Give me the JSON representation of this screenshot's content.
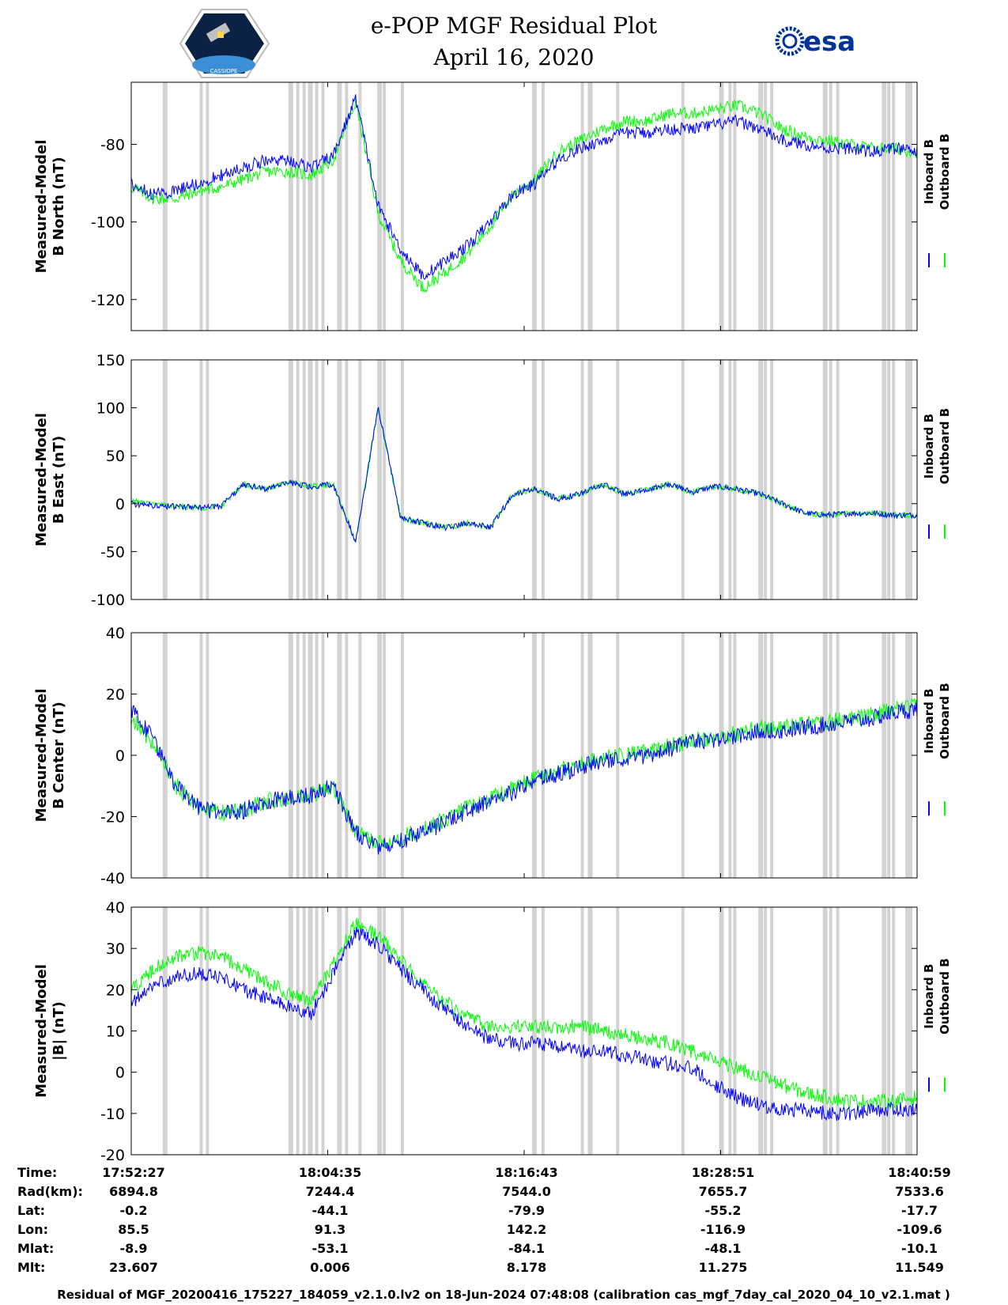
{
  "header": {
    "title": "e-POP MGF Residual Plot",
    "date": "April 16, 2020",
    "logo_left_text": "CASSIOPE",
    "logo_right_text": "esa"
  },
  "legend": {
    "inboard": "Inboard B",
    "outboard": "Outboard B"
  },
  "colors": {
    "inboard": "#0000ff",
    "outboard": "#00ff00",
    "gaps": "#d3d3d3",
    "esa_blue": "#003399"
  },
  "chart_data": [
    {
      "type": "line",
      "ylabel_line1": "Measured-Model",
      "ylabel_line2": "B North (nT)",
      "ylim": [
        -128,
        -64
      ],
      "yticks": [
        -80,
        -100,
        -120
      ],
      "series": [
        {
          "name": "Inboard B",
          "values": [
            -90,
            -93,
            -92,
            -90,
            -88,
            -86,
            -84,
            -84,
            -86,
            -83,
            -68,
            -96,
            -107,
            -114,
            -110,
            -106,
            -100,
            -93,
            -90,
            -84,
            -81,
            -79,
            -77,
            -77,
            -76,
            -76,
            -75,
            -74,
            -76,
            -79,
            -80,
            -81,
            -81,
            -82,
            -81,
            -82
          ]
        },
        {
          "name": "Outboard B",
          "values": [
            -91,
            -94,
            -94,
            -92,
            -91,
            -89,
            -87,
            -87,
            -88,
            -84,
            -69,
            -98,
            -110,
            -117,
            -113,
            -108,
            -101,
            -93,
            -89,
            -82,
            -79,
            -76,
            -74,
            -74,
            -72,
            -72,
            -71,
            -70,
            -72,
            -76,
            -78,
            -79,
            -80,
            -81,
            -81,
            -82
          ]
        }
      ]
    },
    {
      "type": "line",
      "ylabel_line1": "Measured-Model",
      "ylabel_line2": "B East (nT)",
      "ylim": [
        -100,
        150
      ],
      "yticks": [
        150,
        100,
        50,
        0,
        -50,
        -100
      ],
      "series": [
        {
          "name": "Inboard B",
          "values": [
            0,
            -2,
            -3,
            -4,
            -3,
            20,
            15,
            22,
            18,
            20,
            -40,
            100,
            -15,
            -20,
            -25,
            -20,
            -25,
            10,
            15,
            5,
            10,
            20,
            10,
            15,
            20,
            12,
            18,
            15,
            10,
            0,
            -10,
            -12,
            -10,
            -10,
            -12,
            -12
          ]
        },
        {
          "name": "Outboard B",
          "values": [
            3,
            -1,
            -3,
            -4,
            -3,
            20,
            15,
            22,
            18,
            20,
            -40,
            100,
            -15,
            -20,
            -25,
            -20,
            -25,
            10,
            15,
            5,
            10,
            20,
            10,
            15,
            20,
            12,
            18,
            15,
            10,
            0,
            -10,
            -12,
            -10,
            -10,
            -12,
            -12
          ]
        }
      ]
    },
    {
      "type": "line",
      "ylabel_line1": "Measured-Model",
      "ylabel_line2": "B Center (nT)",
      "ylim": [
        -40,
        40
      ],
      "yticks": [
        40,
        20,
        0,
        -20,
        -40
      ],
      "series": [
        {
          "name": "Inboard B",
          "values": [
            15,
            5,
            -10,
            -17,
            -19,
            -18,
            -15,
            -14,
            -13,
            -10,
            -25,
            -30,
            -28,
            -25,
            -22,
            -18,
            -15,
            -12,
            -8,
            -6,
            -4,
            -2,
            -1,
            0,
            2,
            4,
            5,
            6,
            8,
            8,
            9,
            10,
            11,
            12,
            14,
            15
          ]
        },
        {
          "name": "Outboard B",
          "values": [
            12,
            4,
            -10,
            -17,
            -19,
            -18,
            -15,
            -14,
            -13,
            -10,
            -25,
            -29,
            -27,
            -24,
            -21,
            -17,
            -14,
            -11,
            -7,
            -5,
            -3,
            -1,
            0,
            1,
            3,
            5,
            6,
            7,
            9,
            9,
            10,
            11,
            12,
            13,
            15,
            16
          ]
        }
      ]
    },
    {
      "type": "line",
      "ylabel_line1": "Measured-Model",
      "ylabel_line2": "|B| (nT)",
      "ylim": [
        -20,
        40
      ],
      "yticks": [
        40,
        30,
        20,
        10,
        0,
        -10,
        -20
      ],
      "series": [
        {
          "name": "Inboard B",
          "values": [
            17,
            21,
            23,
            24,
            23,
            20,
            18,
            16,
            14,
            24,
            34,
            31,
            25,
            20,
            15,
            11,
            8,
            7,
            7,
            6,
            5,
            5,
            4,
            3,
            2,
            1,
            -3,
            -6,
            -8,
            -9,
            -9,
            -10,
            -10,
            -9,
            -9,
            -9
          ]
        },
        {
          "name": "Outboard B",
          "values": [
            20,
            25,
            28,
            29,
            28,
            25,
            22,
            19,
            17,
            26,
            36,
            33,
            27,
            22,
            17,
            13,
            11,
            11,
            11,
            11,
            11,
            10,
            9,
            8,
            7,
            5,
            3,
            1,
            -1,
            -3,
            -5,
            -6,
            -7,
            -7,
            -7,
            -6
          ]
        }
      ]
    }
  ],
  "footer_table": {
    "row_labels": [
      "Time:",
      "Rad(km):",
      "Lat:",
      "Lon:",
      "Mlat:",
      "Mlt:"
    ],
    "columns": [
      [
        "17:52:27",
        "6894.8",
        "-0.2",
        "85.5",
        "-8.9",
        "23.607"
      ],
      [
        "18:04:35",
        "7244.4",
        "-44.1",
        "91.3",
        "-53.1",
        "0.006"
      ],
      [
        "18:16:43",
        "7544.0",
        "-79.9",
        "142.2",
        "-84.1",
        "8.178"
      ],
      [
        "18:28:51",
        "7655.7",
        "-55.2",
        "-116.9",
        "-48.1",
        "11.275"
      ],
      [
        "18:40:59",
        "7533.6",
        "-17.7",
        "-109.6",
        "-10.1",
        "11.549"
      ]
    ]
  },
  "caption": "Residual of MGF_20200416_175227_184059_v2.1.0.lv2 on 18-Jun-2024 07:48:08 (calibration cas_mgf_7day_cal_2020_04_10_v2.1.mat )",
  "gap_positions": [
    0.04,
    0.087,
    0.095,
    0.2,
    0.21,
    0.218,
    0.225,
    0.234,
    0.242,
    0.262,
    0.272,
    0.289,
    0.313,
    0.32,
    0.343,
    0.51,
    0.522,
    0.572,
    0.581,
    0.617,
    0.7,
    0.748,
    0.76,
    0.766,
    0.798,
    0.805,
    0.813,
    0.88,
    0.888,
    0.897,
    0.955,
    0.962,
    0.968,
    0.985,
    0.99
  ]
}
